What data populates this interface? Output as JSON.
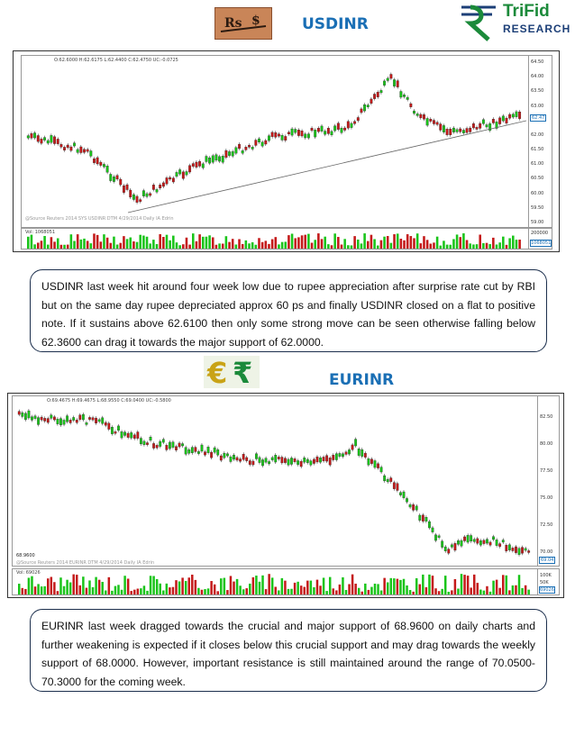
{
  "header": {
    "title": "USDINR",
    "logo_line1": "TriFid",
    "logo_line2": "RESEARCH",
    "colors": {
      "title": "#1a6fb5",
      "logo_green": "#1b8a3a",
      "logo_blue": "#1c3f77"
    }
  },
  "usd_chart": {
    "ohlc_text": "O:62.6000 H:62.6175 L:62.4400 C:62.4750 UC:-0.0725",
    "vol_text": "Vol: 1068051",
    "watermark": "@Source Reuters 2014 SYS USDINR DTM 4/29/2014 Daily IA Edrin",
    "last_price": "62.47",
    "last_volume": "1068051",
    "y_labels": [
      "64.50",
      "64.00",
      "63.50",
      "63.00",
      "62.50",
      "62.00",
      "61.50",
      "61.00",
      "60.50",
      "60.00",
      "59.50",
      "59.00"
    ],
    "vol_labels": [
      "200000"
    ]
  },
  "usd_note": "USDINR last week hit around four week low due to rupee appreciation after surprise rate cut by RBI but on the same day rupee depreciated approx 60 ps and finally USDINR closed on a flat to positive note. If it sustains above 62.6100 then only some strong move can be seen otherwise falling below 62.3600 can drag it towards the major support of 62.0000.",
  "eur_header": {
    "title": "EURINR"
  },
  "eur_chart": {
    "ohlc_text": "O:69.4675 H:69.4675 L:68.9550 C:69.0400 UC:-0.5800",
    "vol_text": "Vol: 69026",
    "watermark": "@Source Reuters 2014 EURINR DTM 4/29/2014 Daily IA Edrin",
    "support_tag": "68.9600",
    "last_price": "69.04",
    "last_volume": "69026",
    "y_labels": [
      "82.50",
      "80.00",
      "77.50",
      "75.00",
      "72.50",
      "70.00"
    ],
    "vol_labels": [
      "100K",
      "50K"
    ]
  },
  "eur_note": "EURINR last week dragged towards the crucial and major support of 68.9600 on daily charts and further weakening is expected if it closes below this crucial support and may drag towards the weekly support of 68.0000. However, important resistance is still maintained around the range of 70.0500-70.3000 for the coming week."
}
